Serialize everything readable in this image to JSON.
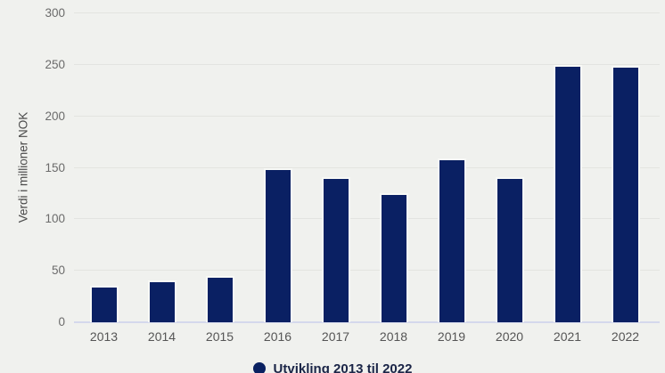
{
  "chart_data": {
    "type": "bar",
    "title": "",
    "categories": [
      "2013",
      "2014",
      "2015",
      "2016",
      "2017",
      "2018",
      "2019",
      "2020",
      "2021",
      "2022"
    ],
    "values": [
      34,
      39,
      43,
      148,
      139,
      124,
      157,
      139,
      248,
      247
    ],
    "series_name": "Utvikling 2013 til 2022",
    "xlabel": "",
    "ylabel": "Verdi i millioner NOK",
    "ylim": [
      0,
      300
    ],
    "yticks": [
      0,
      50,
      100,
      150,
      200,
      250,
      300
    ],
    "grid": true,
    "legend_position": "bottom",
    "colors": {
      "bar_fill": "#0a2063",
      "bar_outline": "#f8f9f6",
      "background": "#f0f1ee",
      "gridline": "#e3e4e0",
      "axis_baseline": "#d4d8ec",
      "tick_text": "#6b6b6b",
      "legend_text": "#1b2547"
    }
  }
}
